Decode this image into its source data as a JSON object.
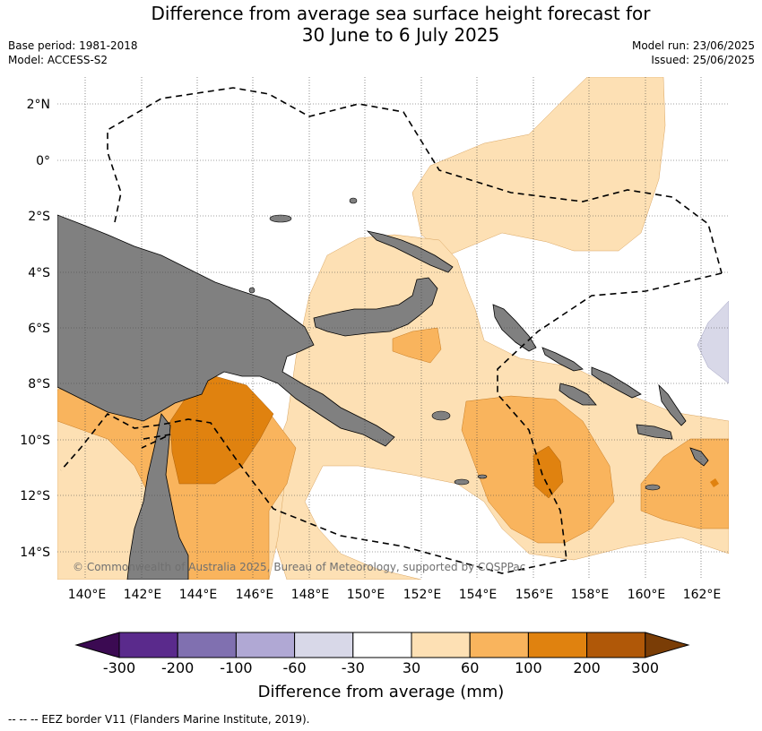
{
  "header": {
    "title_line1": "Difference from average sea surface height forecast for",
    "title_line2": "30 June to 6 July 2025",
    "base_period": "Base period: 1981-2018",
    "model": "Model: ACCESS-S2",
    "model_run": "Model run: 23/06/2025",
    "issued": "Issued: 25/06/2025"
  },
  "map": {
    "lat_labels": [
      "2°N",
      "0°",
      "2°S",
      "4°S",
      "6°S",
      "8°S",
      "10°S",
      "12°S",
      "14°S"
    ],
    "lon_labels": [
      "140°E",
      "142°E",
      "144°E",
      "146°E",
      "148°E",
      "150°E",
      "152°E",
      "154°E",
      "156°E",
      "158°E",
      "160°E",
      "162°E"
    ],
    "land_color": "#808080",
    "copyright": "© Commonwealth of Australia 2025, Bureau of Meteorology, supported by COSPPac"
  },
  "colorbar": {
    "tick_labels": [
      "-300",
      "-200",
      "-100",
      "-60",
      "-30",
      "30",
      "60",
      "100",
      "200",
      "300"
    ],
    "colors": [
      "#3b0a52",
      "#5a2a8c",
      "#8070b0",
      "#b0a8d4",
      "#d8d8e8",
      "#ffffff",
      "#fde0b4",
      "#f9b45d",
      "#e0820f",
      "#b05808",
      "#7a3d06"
    ],
    "title": "Difference from average (mm)"
  },
  "footnote": "--  --  -- EEZ border V11 (Flanders Marine Institute, 2019)."
}
